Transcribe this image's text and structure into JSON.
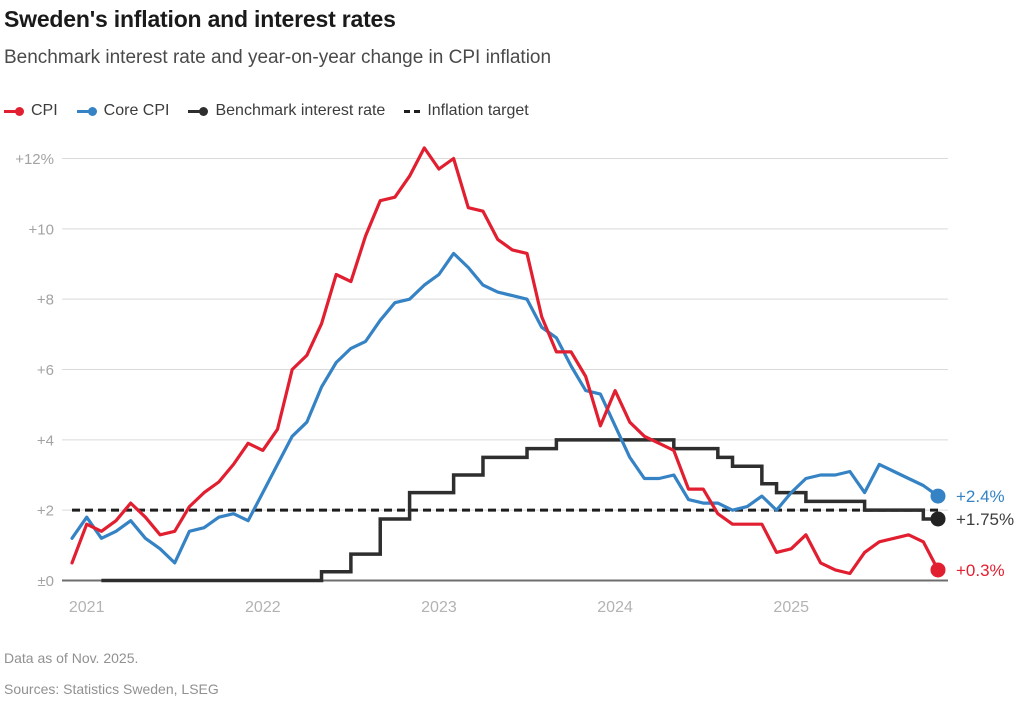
{
  "header": {
    "title": "Sweden's inflation and interest rates",
    "subtitle": "Benchmark interest rate and year-on-year change in CPI inflation"
  },
  "legend": {
    "items": [
      {
        "label": "CPI",
        "color": "#e11f30",
        "marker": "line-dot"
      },
      {
        "label": "Core CPI",
        "color": "#3583c4",
        "marker": "line-dot"
      },
      {
        "label": "Benchmark interest rate",
        "color": "#2e2e2e",
        "marker": "line-dot"
      },
      {
        "label": "Inflation target",
        "color": "#1e1e1e",
        "marker": "dashes"
      }
    ]
  },
  "chart_data": {
    "type": "line",
    "x_unit": "month",
    "x_start": "2020-12",
    "x_end": "2025-11",
    "x_tick_labels": [
      "2021",
      "2022",
      "2023",
      "2024",
      "2025"
    ],
    "y_ticks": [
      0,
      2,
      4,
      6,
      8,
      10,
      12
    ],
    "y_tick_labels": [
      "±0",
      "+2",
      "+4",
      "+6",
      "+8",
      "+10",
      "+12%"
    ],
    "ylim": [
      0,
      12.5
    ],
    "grid": "horizontal",
    "legend_position": "top",
    "target_value": 2,
    "series": [
      {
        "name": "CPI",
        "color": "#e11f30",
        "style": "line",
        "values": [
          0.5,
          1.6,
          1.4,
          1.7,
          2.2,
          1.8,
          1.3,
          1.4,
          2.1,
          2.5,
          2.8,
          3.3,
          3.9,
          3.7,
          4.3,
          6.0,
          6.4,
          7.3,
          8.7,
          8.5,
          9.8,
          10.8,
          10.9,
          11.5,
          12.3,
          11.7,
          12.0,
          10.6,
          10.5,
          9.7,
          9.4,
          9.3,
          7.5,
          6.5,
          6.5,
          5.8,
          4.4,
          5.4,
          4.5,
          4.1,
          3.9,
          3.7,
          2.6,
          2.6,
          1.9,
          1.6,
          1.6,
          1.6,
          0.8,
          0.9,
          1.3,
          0.5,
          0.3,
          0.2,
          0.8,
          1.1,
          1.2,
          1.3,
          1.1,
          0.3
        ]
      },
      {
        "name": "Core CPI",
        "color": "#3583c4",
        "style": "line",
        "values": [
          1.2,
          1.8,
          1.2,
          1.4,
          1.7,
          1.2,
          0.9,
          0.5,
          1.4,
          1.5,
          1.8,
          1.9,
          1.7,
          2.5,
          3.3,
          4.1,
          4.5,
          5.5,
          6.2,
          6.6,
          6.8,
          7.4,
          7.9,
          8.0,
          8.4,
          8.7,
          9.3,
          8.9,
          8.4,
          8.2,
          8.1,
          8.0,
          7.2,
          6.9,
          6.1,
          5.4,
          5.3,
          4.4,
          3.5,
          2.9,
          2.9,
          3.0,
          2.3,
          2.2,
          2.2,
          2.0,
          2.1,
          2.4,
          2.0,
          2.5,
          2.9,
          3.0,
          3.0,
          3.1,
          2.5,
          3.3,
          3.1,
          2.9,
          2.7,
          2.4
        ]
      },
      {
        "name": "Benchmark interest rate",
        "color": "#2e2e2e",
        "style": "step",
        "values": [
          null,
          null,
          0,
          0,
          0,
          0,
          0,
          0,
          0,
          0,
          0,
          0,
          0,
          0,
          0,
          0,
          0,
          0.25,
          0.25,
          0.75,
          0.75,
          1.75,
          1.75,
          2.5,
          2.5,
          2.5,
          3.0,
          3.0,
          3.5,
          3.5,
          3.5,
          3.75,
          3.75,
          4.0,
          4.0,
          4.0,
          4.0,
          4.0,
          4.0,
          4.0,
          4.0,
          3.75,
          3.75,
          3.75,
          3.5,
          3.25,
          3.25,
          2.75,
          2.5,
          2.5,
          2.25,
          2.25,
          2.25,
          2.25,
          2.0,
          2.0,
          2.0,
          2.0,
          1.75,
          1.75
        ]
      },
      {
        "name": "Inflation target",
        "color": "#1e1e1e",
        "style": "dashed-constant",
        "value": 2
      }
    ],
    "end_labels": [
      {
        "text": "+2.4%",
        "value": 2.4,
        "color": "#3583c4"
      },
      {
        "text": "+1.75%",
        "value": 1.75,
        "color": "#3d3d3d",
        "dot_color": "#222222"
      },
      {
        "text": "+0.3%",
        "value": 0.3,
        "color": "#e11f30"
      }
    ]
  },
  "footer": {
    "note": "Data as of Nov. 2025.",
    "sources": "Sources: Statistics Sweden, LSEG"
  }
}
